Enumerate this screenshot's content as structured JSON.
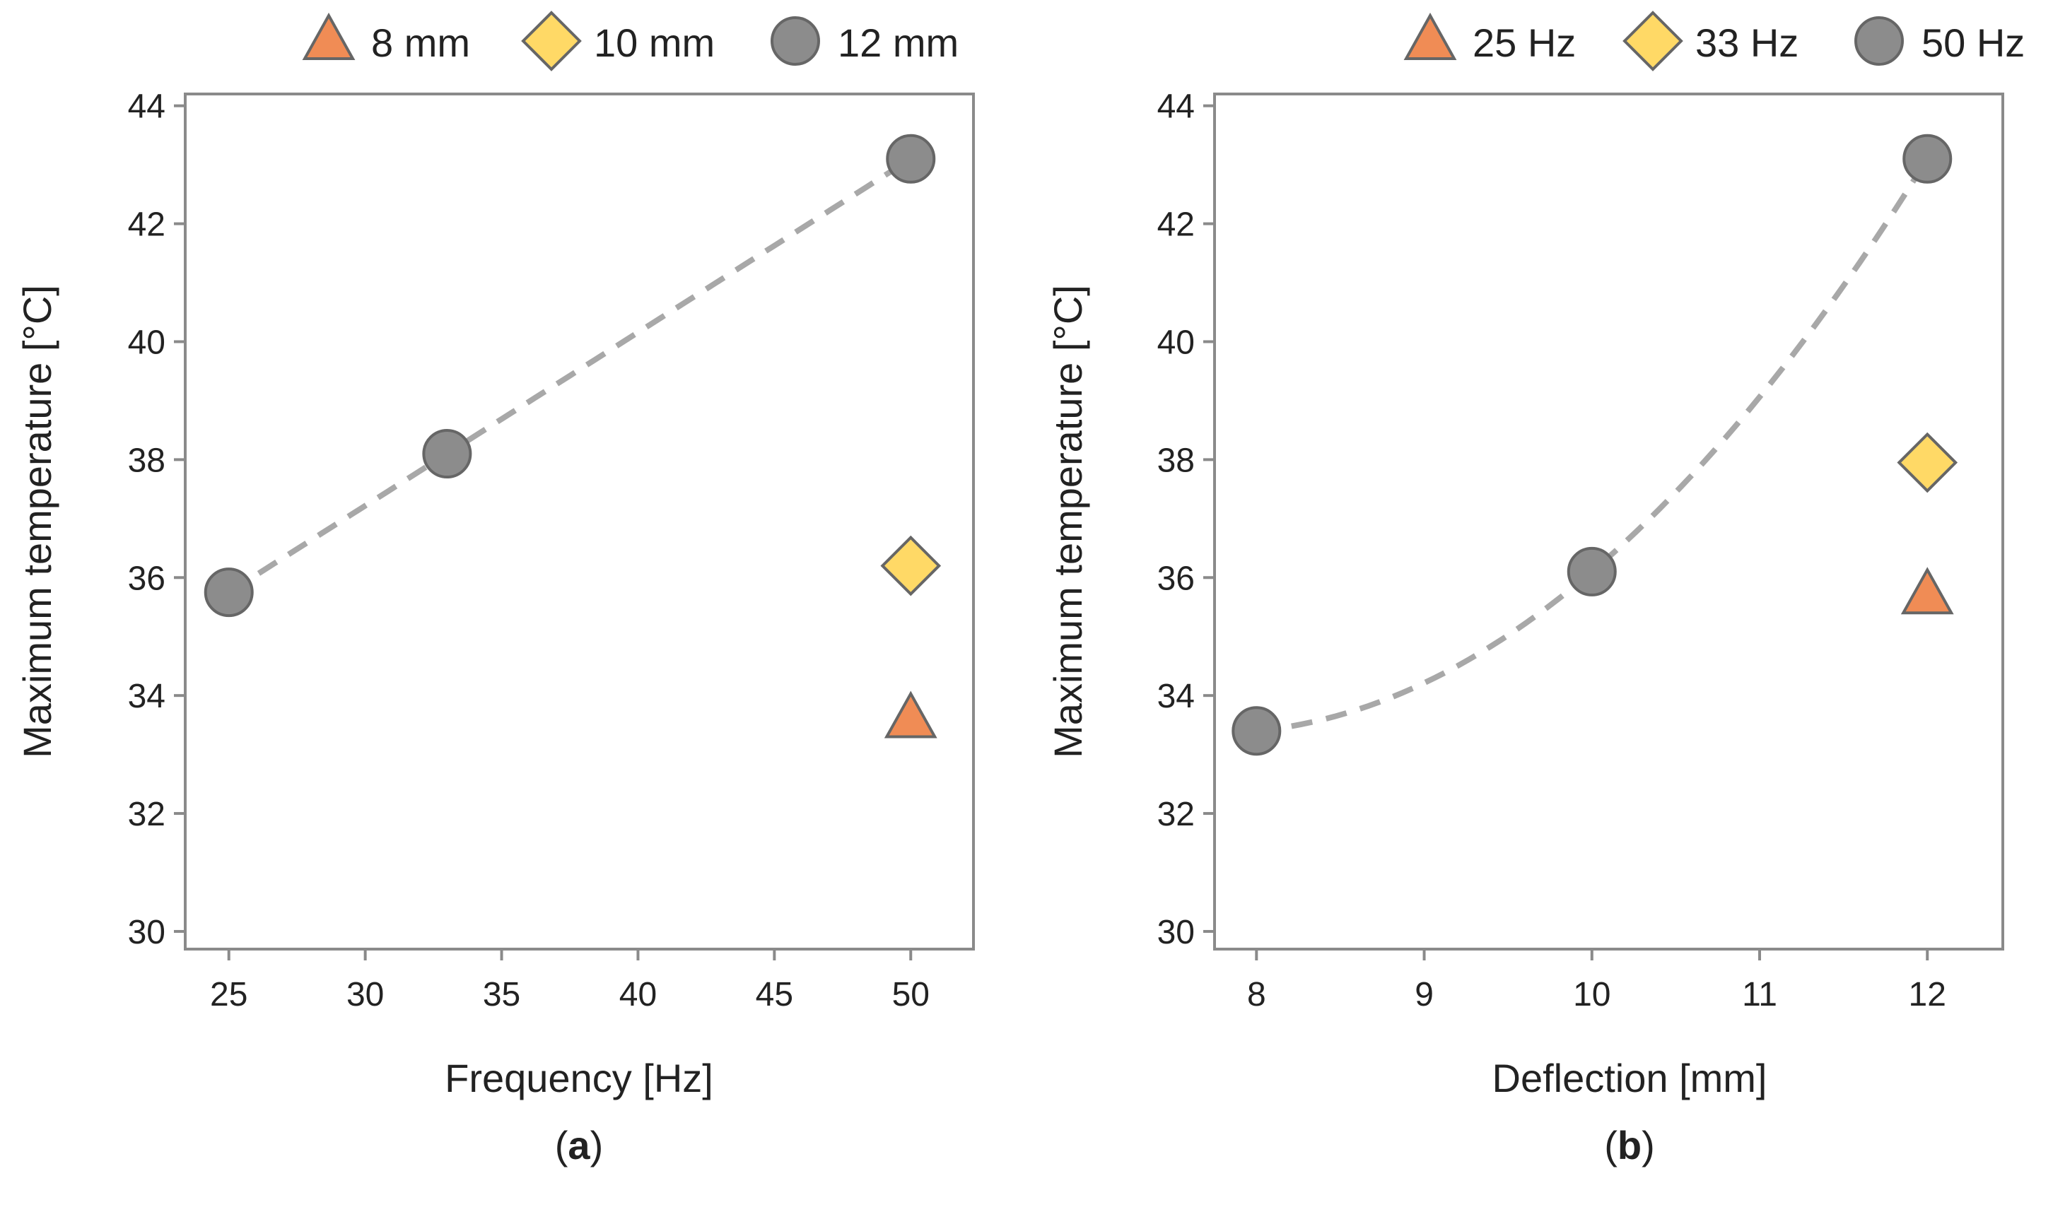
{
  "chart_data": [
    {
      "type": "scatter",
      "panel_label": "a",
      "xlabel": "Frequency [Hz]",
      "ylabel": "Maximum temperature [°C]",
      "xlim": [
        23.4,
        52.3
      ],
      "ylim": [
        29.7,
        44.2
      ],
      "xticks": [
        25,
        30,
        35,
        40,
        45,
        50
      ],
      "yticks": [
        30,
        32,
        34,
        36,
        38,
        40,
        42,
        44
      ],
      "legend": [
        {
          "label": "8 mm",
          "marker": "triangle",
          "color": "#F08C55"
        },
        {
          "label": "10 mm",
          "marker": "diamond",
          "color": "#FFD966"
        },
        {
          "label": "12 mm",
          "marker": "circle",
          "color": "#8C8C8C"
        }
      ],
      "series": [
        {
          "name": "8 mm",
          "marker": "triangle",
          "color": "#F08C55",
          "points": [
            {
              "x": 50,
              "y": 33.6
            }
          ]
        },
        {
          "name": "10 mm",
          "marker": "diamond",
          "color": "#FFD966",
          "points": [
            {
              "x": 50,
              "y": 36.2
            }
          ]
        },
        {
          "name": "12 mm",
          "marker": "circle",
          "color": "#8C8C8C",
          "points": [
            {
              "x": 25,
              "y": 35.75
            },
            {
              "x": 33,
              "y": 38.1
            },
            {
              "x": 50,
              "y": 43.1
            }
          ]
        }
      ],
      "trendline": {
        "type": "quadratic",
        "series": "12 mm",
        "x_range": [
          25,
          50
        ],
        "style": "dashed",
        "color": "#A8A8A8"
      }
    },
    {
      "type": "scatter",
      "panel_label": "b",
      "xlabel": "Deflection [mm]",
      "ylabel": "Maximum temperature [°C]",
      "xlim": [
        7.75,
        12.45
      ],
      "ylim": [
        29.7,
        44.2
      ],
      "xticks": [
        8,
        9,
        10,
        11,
        12
      ],
      "yticks": [
        30,
        32,
        34,
        36,
        38,
        40,
        42,
        44
      ],
      "legend": [
        {
          "label": "25 Hz",
          "marker": "triangle",
          "color": "#F08C55"
        },
        {
          "label": "33 Hz",
          "marker": "diamond",
          "color": "#FFD966"
        },
        {
          "label": "50 Hz",
          "marker": "circle",
          "color": "#8C8C8C"
        }
      ],
      "series": [
        {
          "name": "25 Hz",
          "marker": "triangle",
          "color": "#F08C55",
          "points": [
            {
              "x": 12,
              "y": 35.7
            }
          ]
        },
        {
          "name": "33 Hz",
          "marker": "diamond",
          "color": "#FFD966",
          "points": [
            {
              "x": 12,
              "y": 37.95
            }
          ]
        },
        {
          "name": "50 Hz",
          "marker": "circle",
          "color": "#8C8C8C",
          "points": [
            {
              "x": 8,
              "y": 33.4
            },
            {
              "x": 10,
              "y": 36.1
            },
            {
              "x": 12,
              "y": 43.1
            }
          ]
        }
      ],
      "trendline": {
        "type": "quadratic",
        "series": "50 Hz",
        "x_range": [
          8,
          12
        ],
        "style": "dashed",
        "color": "#A8A8A8"
      }
    }
  ],
  "colors": {
    "frame": "#8A8A8A",
    "marker_edge": "#666666",
    "text": "#222222"
  }
}
